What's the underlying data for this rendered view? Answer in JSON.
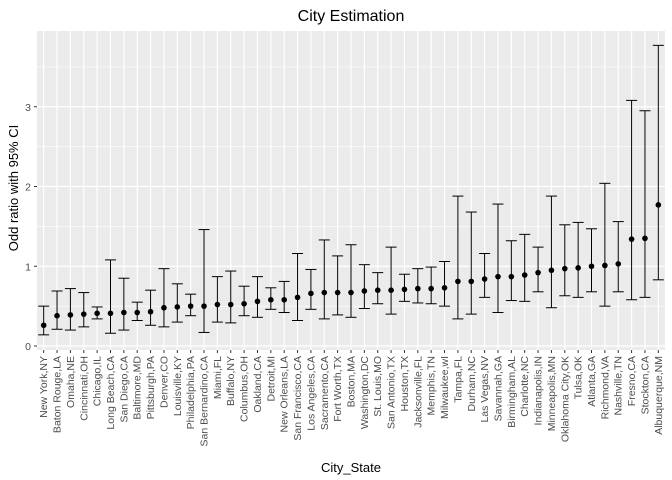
{
  "chart_data": {
    "type": "scatter",
    "title": "City Estimation",
    "xlabel": "City_State",
    "ylabel": "Odd ratio with 95% CI",
    "ylim": [
      -0.05,
      3.95
    ],
    "y_ticks": [
      0,
      1,
      2,
      3
    ],
    "grid": true,
    "legend": "none",
    "colors": {
      "panel": "#EBEBEB",
      "grid": "#FFFFFF",
      "point": "#000000",
      "errorbar": "#000000",
      "tick_label": "#4D4D4D"
    },
    "categories": [
      "New York,NY",
      "Baton Rouge,LA",
      "Omaha,NE",
      "Cincinnati,OH",
      "Chicago,IL",
      "Long Beach,CA",
      "San Diego,CA",
      "Baltimore,MD",
      "Pittsburgh,PA",
      "Denver,CO",
      "Louisville,KY",
      "Philadelphia,PA",
      "San Bernardino,CA",
      "Miami,FL",
      "Buffalo,NY",
      "Columbus,OH",
      "Oakland,CA",
      "Detroit,MI",
      "New Orleans,LA",
      "San Francisco,CA",
      "Los Angeles,CA",
      "Sacramento,CA",
      "Fort Worth,TX",
      "Boston,MA",
      "Washington,DC",
      "St. Louis,MO",
      "San Antonio,TX",
      "Houston,TX",
      "Jacksonville,FL",
      "Memphis,TN",
      "Milwaukee,wI",
      "Tampa,FL",
      "Durham,NC",
      "Las Vegas,NV",
      "Savannah,GA",
      "Birmingham,AL",
      "Charlotte,NC",
      "Indianapolis,IN",
      "Minneapolis,MN",
      "Oklahoma City,OK",
      "Tulsa,OK",
      "Atlanta,GA",
      "Richmond,VA",
      "Nashville,TN",
      "Fresno,CA",
      "Stockton,CA",
      "Albuquerque,NM"
    ],
    "values": [
      0.26,
      0.38,
      0.39,
      0.4,
      0.41,
      0.41,
      0.42,
      0.42,
      0.43,
      0.48,
      0.49,
      0.5,
      0.5,
      0.52,
      0.52,
      0.53,
      0.56,
      0.58,
      0.58,
      0.61,
      0.66,
      0.67,
      0.67,
      0.67,
      0.69,
      0.7,
      0.7,
      0.71,
      0.72,
      0.72,
      0.73,
      0.81,
      0.81,
      0.84,
      0.87,
      0.87,
      0.89,
      0.92,
      0.95,
      0.97,
      0.98,
      1.0,
      1.01,
      1.03,
      1.34,
      1.35,
      1.77
    ],
    "ci_low": [
      0.14,
      0.21,
      0.2,
      0.24,
      0.34,
      0.16,
      0.2,
      0.32,
      0.26,
      0.24,
      0.3,
      0.38,
      0.17,
      0.3,
      0.29,
      0.38,
      0.36,
      0.46,
      0.42,
      0.32,
      0.46,
      0.34,
      0.39,
      0.36,
      0.47,
      0.53,
      0.4,
      0.56,
      0.54,
      0.53,
      0.5,
      0.34,
      0.4,
      0.61,
      0.42,
      0.57,
      0.56,
      0.68,
      0.48,
      0.63,
      0.61,
      0.68,
      0.5,
      0.68,
      0.58,
      0.61,
      0.83
    ],
    "ci_high": [
      0.5,
      0.69,
      0.72,
      0.67,
      0.49,
      1.08,
      0.85,
      0.55,
      0.7,
      0.97,
      0.78,
      0.65,
      1.46,
      0.87,
      0.94,
      0.75,
      0.87,
      0.73,
      0.81,
      1.16,
      0.96,
      1.33,
      1.13,
      1.27,
      1.02,
      0.92,
      1.24,
      0.9,
      0.97,
      0.99,
      1.06,
      1.88,
      1.68,
      1.16,
      1.78,
      1.32,
      1.4,
      1.24,
      1.88,
      1.52,
      1.55,
      1.47,
      2.04,
      1.56,
      3.08,
      2.95,
      3.77
    ]
  }
}
